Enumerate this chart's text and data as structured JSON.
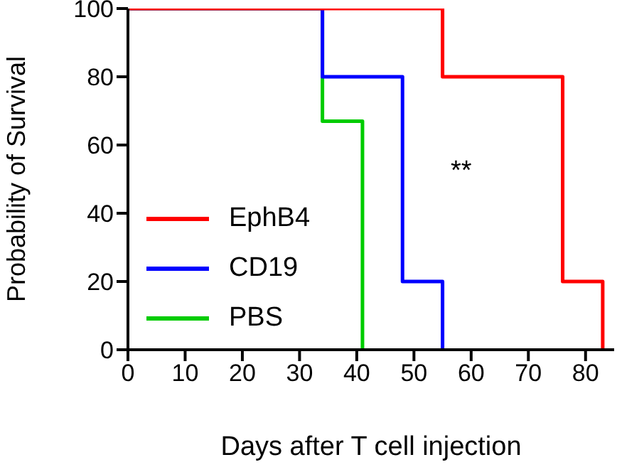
{
  "chart_data": {
    "type": "step",
    "xlabel": "Days after T cell injection",
    "ylabel": "Probability of Survival",
    "xlim": [
      0,
      85
    ],
    "xticks": [
      0,
      10,
      20,
      30,
      40,
      50,
      60,
      70,
      80
    ],
    "ylim": [
      0,
      100
    ],
    "yticks": [
      0,
      20,
      40,
      60,
      80,
      100
    ],
    "grid": false,
    "legend": "bottom left",
    "marker": "none",
    "line_style": "solid",
    "annotations": [
      "**"
    ],
    "series": [
      {
        "name": "EphB4",
        "color": "#ff0000",
        "x": [
          0,
          55,
          76,
          83
        ],
        "values": [
          100,
          80,
          20,
          0
        ]
      },
      {
        "name": "CD19",
        "color": "#0000ff",
        "x": [
          0,
          34,
          48,
          55
        ],
        "values": [
          100,
          80,
          20,
          0
        ]
      },
      {
        "name": "PBS",
        "color": "#00cc00",
        "x": [
          0,
          34,
          41
        ],
        "values": [
          100,
          67,
          0
        ]
      }
    ]
  }
}
